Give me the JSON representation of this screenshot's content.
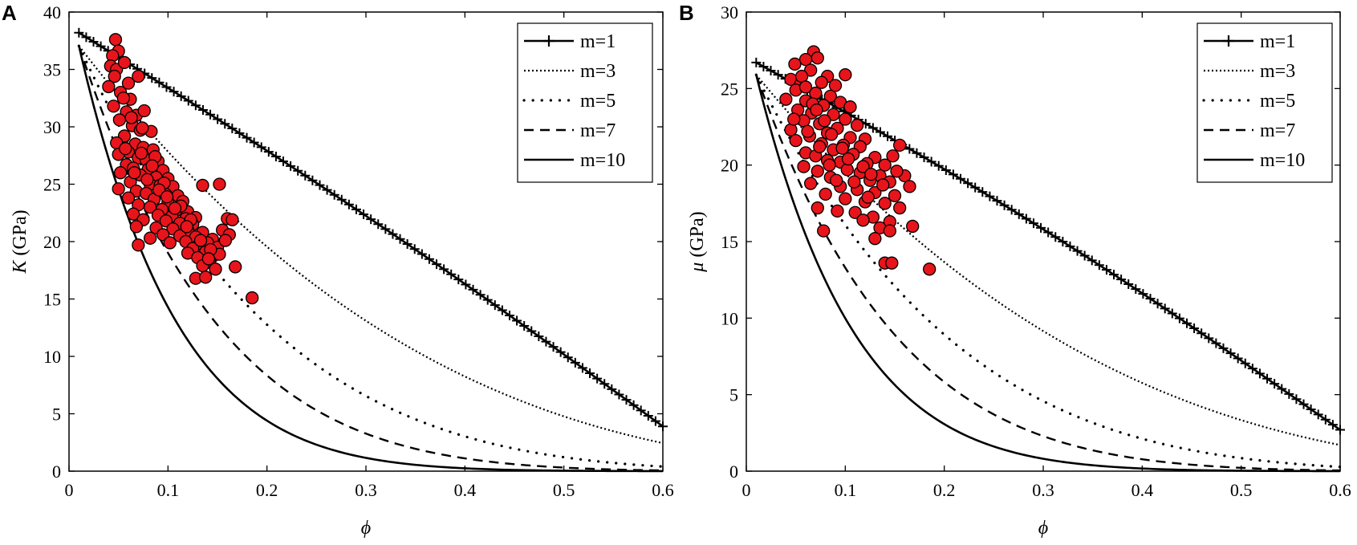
{
  "chart_data": [
    {
      "panel_label": "A",
      "type": "line+scatter",
      "xlabel": "ϕ",
      "ylabel_symbol": "K",
      "ylabel_unit": "(GPa)",
      "xlim": [
        0,
        0.6
      ],
      "ylim": [
        0,
        40
      ],
      "xticks": [
        0,
        0.1,
        0.2,
        0.3,
        0.4,
        0.5,
        0.6
      ],
      "xtick_labels": [
        "0",
        "0.1",
        "0.2",
        "0.3",
        "0.4",
        "0.5",
        "0.6"
      ],
      "yticks": [
        0,
        5,
        10,
        15,
        20,
        25,
        30,
        35,
        40
      ],
      "ytick_labels": [
        "0",
        "5",
        "10",
        "15",
        "20",
        "25",
        "30",
        "35",
        "40"
      ],
      "legend_position": "top-right",
      "model": {
        "x_start": 0.01,
        "x_end": 0.6,
        "y_at_start": 38.2,
        "y_at_end": 3.9
      },
      "series": [
        {
          "name": "m=1",
          "m": 1,
          "style": "plus-marker"
        },
        {
          "name": "m=3",
          "m": 3,
          "style": "dotted"
        },
        {
          "name": "m=5",
          "m": 5,
          "style": "sparse-dots"
        },
        {
          "name": "m=7",
          "m": 7,
          "style": "dashed"
        },
        {
          "name": "m=10",
          "m": 10,
          "style": "solid"
        }
      ],
      "scatter_color": "#e8141b",
      "scatter": [
        [
          0.047,
          37.6
        ],
        [
          0.05,
          36.6
        ],
        [
          0.044,
          36.2
        ],
        [
          0.042,
          35.3
        ],
        [
          0.048,
          35.0
        ],
        [
          0.056,
          35.6
        ],
        [
          0.046,
          34.4
        ],
        [
          0.06,
          33.8
        ],
        [
          0.07,
          34.4
        ],
        [
          0.04,
          33.5
        ],
        [
          0.052,
          33.0
        ],
        [
          0.062,
          32.4
        ],
        [
          0.045,
          31.8
        ],
        [
          0.058,
          31.3
        ],
        [
          0.068,
          31.0
        ],
        [
          0.076,
          31.4
        ],
        [
          0.051,
          30.6
        ],
        [
          0.064,
          30.1
        ],
        [
          0.072,
          29.7
        ],
        [
          0.083,
          29.6
        ],
        [
          0.056,
          29.2
        ],
        [
          0.048,
          28.6
        ],
        [
          0.067,
          28.5
        ],
        [
          0.075,
          28.2
        ],
        [
          0.085,
          28.0
        ],
        [
          0.06,
          27.8
        ],
        [
          0.05,
          27.6
        ],
        [
          0.07,
          27.3
        ],
        [
          0.078,
          27.1
        ],
        [
          0.09,
          27.0
        ],
        [
          0.058,
          26.7
        ],
        [
          0.065,
          26.4
        ],
        [
          0.08,
          26.3
        ],
        [
          0.095,
          26.2
        ],
        [
          0.052,
          26.0
        ],
        [
          0.072,
          25.8
        ],
        [
          0.088,
          25.6
        ],
        [
          0.1,
          25.5
        ],
        [
          0.062,
          25.2
        ],
        [
          0.082,
          25.0
        ],
        [
          0.092,
          24.9
        ],
        [
          0.105,
          24.8
        ],
        [
          0.135,
          24.9
        ],
        [
          0.152,
          25.0
        ],
        [
          0.05,
          24.6
        ],
        [
          0.068,
          24.4
        ],
        [
          0.078,
          24.2
        ],
        [
          0.098,
          24.1
        ],
        [
          0.11,
          24.0
        ],
        [
          0.06,
          23.8
        ],
        [
          0.086,
          23.7
        ],
        [
          0.1,
          23.4
        ],
        [
          0.115,
          23.5
        ],
        [
          0.07,
          23.2
        ],
        [
          0.082,
          23.0
        ],
        [
          0.094,
          22.8
        ],
        [
          0.108,
          22.7
        ],
        [
          0.12,
          22.6
        ],
        [
          0.065,
          22.4
        ],
        [
          0.09,
          22.3
        ],
        [
          0.104,
          22.2
        ],
        [
          0.118,
          22.0
        ],
        [
          0.128,
          22.1
        ],
        [
          0.075,
          21.9
        ],
        [
          0.098,
          21.8
        ],
        [
          0.112,
          21.6
        ],
        [
          0.125,
          21.5
        ],
        [
          0.16,
          22.0
        ],
        [
          0.165,
          21.9
        ],
        [
          0.068,
          21.3
        ],
        [
          0.088,
          21.2
        ],
        [
          0.105,
          21.1
        ],
        [
          0.12,
          21.0
        ],
        [
          0.135,
          20.8
        ],
        [
          0.155,
          21.0
        ],
        [
          0.095,
          20.6
        ],
        [
          0.112,
          20.5
        ],
        [
          0.128,
          20.4
        ],
        [
          0.145,
          20.2
        ],
        [
          0.162,
          20.6
        ],
        [
          0.082,
          20.3
        ],
        [
          0.118,
          20.0
        ],
        [
          0.132,
          19.8
        ],
        [
          0.14,
          19.9
        ],
        [
          0.15,
          19.5
        ],
        [
          0.102,
          19.9
        ],
        [
          0.125,
          19.4
        ],
        [
          0.138,
          19.1
        ],
        [
          0.145,
          18.7
        ],
        [
          0.12,
          19.0
        ],
        [
          0.13,
          18.6
        ],
        [
          0.142,
          18.2
        ],
        [
          0.152,
          18.9
        ],
        [
          0.135,
          17.9
        ],
        [
          0.148,
          17.6
        ],
        [
          0.168,
          17.8
        ],
        [
          0.128,
          16.8
        ],
        [
          0.138,
          16.9
        ],
        [
          0.07,
          19.7
        ],
        [
          0.185,
          15.1
        ],
        [
          0.055,
          32.5
        ],
        [
          0.063,
          30.8
        ],
        [
          0.074,
          29.9
        ],
        [
          0.087,
          27.4
        ],
        [
          0.096,
          25.1
        ],
        [
          0.113,
          23.1
        ],
        [
          0.123,
          21.9
        ],
        [
          0.133,
          20.1
        ],
        [
          0.143,
          19.3
        ],
        [
          0.158,
          20.1
        ],
        [
          0.066,
          26.0
        ],
        [
          0.079,
          25.4
        ],
        [
          0.091,
          24.5
        ],
        [
          0.107,
          22.9
        ],
        [
          0.119,
          21.3
        ],
        [
          0.141,
          18.5
        ],
        [
          0.057,
          28.1
        ],
        [
          0.073,
          27.7
        ],
        [
          0.084,
          26.6
        ],
        [
          0.099,
          23.9
        ]
      ]
    },
    {
      "panel_label": "B",
      "type": "line+scatter",
      "xlabel": "ϕ",
      "ylabel_symbol": "μ",
      "ylabel_unit": "(GPa)",
      "xlim": [
        0,
        0.6
      ],
      "ylim": [
        0,
        30
      ],
      "xticks": [
        0,
        0.1,
        0.2,
        0.3,
        0.4,
        0.5,
        0.6
      ],
      "xtick_labels": [
        "0",
        "0.1",
        "0.2",
        "0.3",
        "0.4",
        "0.5",
        "0.6"
      ],
      "yticks": [
        0,
        5,
        10,
        15,
        20,
        25,
        30
      ],
      "ytick_labels": [
        "0",
        "5",
        "10",
        "15",
        "20",
        "25",
        "30"
      ],
      "legend_position": "top-right",
      "model": {
        "x_start": 0.01,
        "x_end": 0.6,
        "y_at_start": 26.7,
        "y_at_end": 2.7
      },
      "series": [
        {
          "name": "m=1",
          "m": 1,
          "style": "plus-marker"
        },
        {
          "name": "m=3",
          "m": 3,
          "style": "dotted"
        },
        {
          "name": "m=5",
          "m": 5,
          "style": "sparse-dots"
        },
        {
          "name": "m=7",
          "m": 7,
          "style": "dashed"
        },
        {
          "name": "m=10",
          "m": 10,
          "style": "solid"
        }
      ],
      "scatter_color": "#e8141b",
      "scatter": [
        [
          0.068,
          27.4
        ],
        [
          0.072,
          27.0
        ],
        [
          0.06,
          26.9
        ],
        [
          0.049,
          26.6
        ],
        [
          0.065,
          26.2
        ],
        [
          0.1,
          25.9
        ],
        [
          0.082,
          25.8
        ],
        [
          0.045,
          25.6
        ],
        [
          0.055,
          25.3
        ],
        [
          0.076,
          25.4
        ],
        [
          0.09,
          25.2
        ],
        [
          0.05,
          24.9
        ],
        [
          0.07,
          24.7
        ],
        [
          0.085,
          24.5
        ],
        [
          0.04,
          24.3
        ],
        [
          0.06,
          24.2
        ],
        [
          0.095,
          24.1
        ],
        [
          0.078,
          23.9
        ],
        [
          0.105,
          23.8
        ],
        [
          0.052,
          23.6
        ],
        [
          0.066,
          23.4
        ],
        [
          0.088,
          23.3
        ],
        [
          0.1,
          23.0
        ],
        [
          0.058,
          22.9
        ],
        [
          0.074,
          22.7
        ],
        [
          0.112,
          22.6
        ],
        [
          0.045,
          22.3
        ],
        [
          0.092,
          22.4
        ],
        [
          0.082,
          22.1
        ],
        [
          0.064,
          21.9
        ],
        [
          0.105,
          21.8
        ],
        [
          0.12,
          21.7
        ],
        [
          0.05,
          21.6
        ],
        [
          0.076,
          21.4
        ],
        [
          0.098,
          21.3
        ],
        [
          0.088,
          21.0
        ],
        [
          0.115,
          21.2
        ],
        [
          0.155,
          21.3
        ],
        [
          0.06,
          20.8
        ],
        [
          0.07,
          20.6
        ],
        [
          0.108,
          20.7
        ],
        [
          0.13,
          20.5
        ],
        [
          0.148,
          20.6
        ],
        [
          0.082,
          20.3
        ],
        [
          0.095,
          20.2
        ],
        [
          0.122,
          20.1
        ],
        [
          0.14,
          20.0
        ],
        [
          0.058,
          19.9
        ],
        [
          0.072,
          19.6
        ],
        [
          0.102,
          19.7
        ],
        [
          0.115,
          19.5
        ],
        [
          0.135,
          19.3
        ],
        [
          0.16,
          19.3
        ],
        [
          0.085,
          19.2
        ],
        [
          0.125,
          19.0
        ],
        [
          0.145,
          18.9
        ],
        [
          0.165,
          18.6
        ],
        [
          0.065,
          18.8
        ],
        [
          0.095,
          18.6
        ],
        [
          0.112,
          18.4
        ],
        [
          0.13,
          18.2
        ],
        [
          0.15,
          18.0
        ],
        [
          0.08,
          18.1
        ],
        [
          0.1,
          17.8
        ],
        [
          0.12,
          17.6
        ],
        [
          0.14,
          17.5
        ],
        [
          0.155,
          17.2
        ],
        [
          0.072,
          17.2
        ],
        [
          0.092,
          17.0
        ],
        [
          0.11,
          16.9
        ],
        [
          0.128,
          16.6
        ],
        [
          0.145,
          16.3
        ],
        [
          0.118,
          16.4
        ],
        [
          0.135,
          15.9
        ],
        [
          0.168,
          16.0
        ],
        [
          0.078,
          15.7
        ],
        [
          0.13,
          15.2
        ],
        [
          0.145,
          15.7
        ],
        [
          0.14,
          13.6
        ],
        [
          0.147,
          13.6
        ],
        [
          0.185,
          13.2
        ],
        [
          0.056,
          25.8
        ],
        [
          0.067,
          24.0
        ],
        [
          0.079,
          22.9
        ],
        [
          0.086,
          22.0
        ],
        [
          0.097,
          21.1
        ],
        [
          0.103,
          20.4
        ],
        [
          0.118,
          19.9
        ],
        [
          0.126,
          19.4
        ],
        [
          0.138,
          18.7
        ],
        [
          0.048,
          23.0
        ],
        [
          0.062,
          22.2
        ],
        [
          0.074,
          21.2
        ],
        [
          0.084,
          20.0
        ],
        [
          0.091,
          19.0
        ],
        [
          0.109,
          18.9
        ],
        [
          0.123,
          17.9
        ],
        [
          0.152,
          19.6
        ],
        [
          0.06,
          25.1
        ],
        [
          0.071,
          23.6
        ]
      ]
    }
  ]
}
